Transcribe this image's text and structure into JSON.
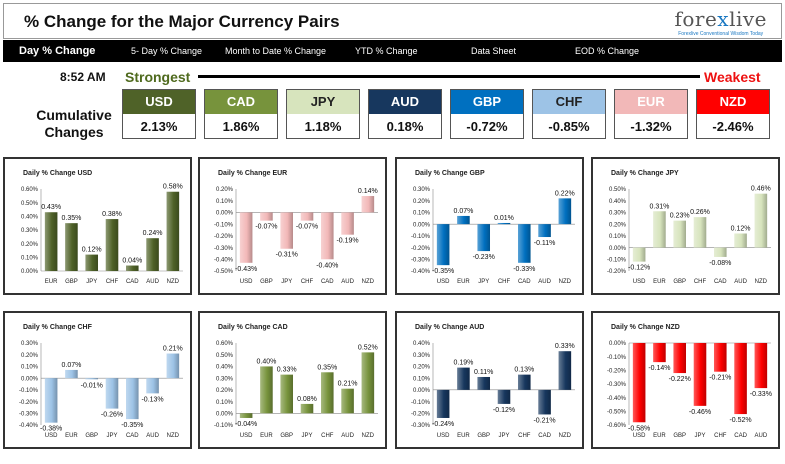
{
  "header": {
    "title": "% Change for the Major Currency Pairs"
  },
  "logo": {
    "brand_a": "fore",
    "brand_x": "x",
    "brand_b": "live",
    "tagline": "Forexlive Conventional Wisdom Today"
  },
  "tabs": [
    "Day % Change",
    "5- Day % Change",
    "Month to Date % Change",
    "YTD % Change",
    "Data Sheet",
    "EOD % Change"
  ],
  "summary": {
    "time": "8:52 AM",
    "strongest_label": "Strongest",
    "weakest_label": "Weakest",
    "cumulative_label_1": "Cumulative",
    "cumulative_label_2": "Changes",
    "currencies": [
      {
        "name": "USD",
        "value": "2.13%",
        "bg": "#4f6228",
        "fg": "#ffffff"
      },
      {
        "name": "CAD",
        "value": "1.86%",
        "bg": "#77933c",
        "fg": "#ffffff"
      },
      {
        "name": "JPY",
        "value": "1.18%",
        "bg": "#d7e4bd",
        "fg": "#222222"
      },
      {
        "name": "AUD",
        "value": "0.18%",
        "bg": "#17375e",
        "fg": "#ffffff"
      },
      {
        "name": "GBP",
        "value": "-0.72%",
        "bg": "#0070c0",
        "fg": "#ffffff"
      },
      {
        "name": "CHF",
        "value": "-0.85%",
        "bg": "#9dc3e6",
        "fg": "#222222"
      },
      {
        "name": "EUR",
        "value": "-1.32%",
        "bg": "#f2b8b8",
        "fg": "#ffffff"
      },
      {
        "name": "NZD",
        "value": "-2.46%",
        "bg": "#ff0000",
        "fg": "#ffffff"
      }
    ]
  },
  "chart_data": [
    {
      "type": "bar",
      "title": "Daily % Change USD",
      "categories": [
        "EUR",
        "GBP",
        "JPY",
        "CHF",
        "CAD",
        "AUD",
        "NZD"
      ],
      "values": [
        0.43,
        0.35,
        0.12,
        0.38,
        0.04,
        0.24,
        0.58
      ],
      "labels": [
        "0.43%",
        "0.35%",
        "0.12%",
        "0.38%",
        "0.04%",
        "0.24%",
        "0.58%"
      ],
      "ylim": [
        0,
        0.6
      ],
      "yticks": [
        "0.00%",
        "0.10%",
        "0.20%",
        "0.30%",
        "0.40%",
        "0.50%",
        "0.60%"
      ],
      "color": "#4f6228"
    },
    {
      "type": "bar",
      "title": "Daily % Change EUR",
      "categories": [
        "USD",
        "GBP",
        "JPY",
        "CHF",
        "CAD",
        "AUD",
        "NZD"
      ],
      "values": [
        -0.43,
        -0.07,
        -0.31,
        -0.07,
        -0.4,
        -0.19,
        0.14
      ],
      "labels": [
        "-0.43%",
        "-0.07%",
        "-0.31%",
        "-0.07%",
        "-0.40%",
        "-0.19%",
        "0.14%"
      ],
      "ylim": [
        -0.5,
        0.2
      ],
      "yticks": [
        "-0.50%",
        "-0.40%",
        "-0.30%",
        "-0.20%",
        "-0.10%",
        "0.00%",
        "0.10%",
        "0.20%"
      ],
      "color": "#f2b8b8"
    },
    {
      "type": "bar",
      "title": "Daily % Change GBP",
      "categories": [
        "USD",
        "EUR",
        "JPY",
        "CHF",
        "CAD",
        "AUD",
        "NZD"
      ],
      "values": [
        -0.35,
        0.07,
        -0.23,
        0.01,
        -0.33,
        -0.11,
        0.22
      ],
      "labels": [
        "-0.35%",
        "0.07%",
        "-0.23%",
        "0.01%",
        "-0.33%",
        "-0.11%",
        "0.22%"
      ],
      "ylim": [
        -0.4,
        0.3
      ],
      "yticks": [
        "-0.40%",
        "-0.30%",
        "-0.20%",
        "-0.10%",
        "0.00%",
        "0.10%",
        "0.20%",
        "0.30%"
      ],
      "color": "#0070c0"
    },
    {
      "type": "bar",
      "title": "Daily % Change JPY",
      "categories": [
        "USD",
        "EUR",
        "GBP",
        "CHF",
        "CAD",
        "AUD",
        "NZD"
      ],
      "values": [
        -0.12,
        0.31,
        0.23,
        0.26,
        -0.08,
        0.12,
        0.46
      ],
      "labels": [
        "-0.12%",
        "0.31%",
        "0.23%",
        "0.26%",
        "-0.08%",
        "0.12%",
        "0.46%"
      ],
      "ylim": [
        -0.2,
        0.5
      ],
      "yticks": [
        "-0.20%",
        "-0.10%",
        "0.00%",
        "0.10%",
        "0.20%",
        "0.30%",
        "0.40%",
        "0.50%"
      ],
      "color": "#d7e4bd"
    },
    {
      "type": "bar",
      "title": "Daily % Change CHF",
      "categories": [
        "USD",
        "EUR",
        "GBP",
        "JPY",
        "CAD",
        "AUD",
        "NZD"
      ],
      "values": [
        -0.38,
        0.07,
        -0.01,
        -0.26,
        -0.35,
        -0.13,
        0.21
      ],
      "labels": [
        "-0.38%",
        "0.07%",
        "-0.01%",
        "-0.26%",
        "-0.35%",
        "-0.13%",
        "0.21%"
      ],
      "ylim": [
        -0.4,
        0.3
      ],
      "yticks": [
        "-0.40%",
        "-0.30%",
        "-0.20%",
        "-0.10%",
        "0.00%",
        "0.10%",
        "0.20%",
        "0.30%"
      ],
      "color": "#9dc3e6"
    },
    {
      "type": "bar",
      "title": "Daily % Change CAD",
      "categories": [
        "USD",
        "EUR",
        "GBP",
        "JPY",
        "CHF",
        "AUD",
        "NZD"
      ],
      "values": [
        -0.04,
        0.4,
        0.33,
        0.08,
        0.35,
        0.21,
        0.52
      ],
      "labels": [
        "-0.04%",
        "0.40%",
        "0.33%",
        "0.08%",
        "0.35%",
        "0.21%",
        "0.52%"
      ],
      "ylim": [
        -0.1,
        0.6
      ],
      "yticks": [
        "-0.10%",
        "0.00%",
        "0.10%",
        "0.20%",
        "0.30%",
        "0.40%",
        "0.50%",
        "0.60%"
      ],
      "color": "#77933c"
    },
    {
      "type": "bar",
      "title": "Daily % Change AUD",
      "categories": [
        "USD",
        "EUR",
        "GBP",
        "JPY",
        "CHF",
        "CAD",
        "NZD"
      ],
      "values": [
        -0.24,
        0.19,
        0.11,
        -0.12,
        0.13,
        -0.21,
        0.33
      ],
      "labels": [
        "-0.24%",
        "0.19%",
        "0.11%",
        "-0.12%",
        "0.13%",
        "-0.21%",
        "0.33%"
      ],
      "ylim": [
        -0.3,
        0.4
      ],
      "yticks": [
        "-0.30%",
        "-0.20%",
        "-0.10%",
        "0.00%",
        "0.10%",
        "0.20%",
        "0.30%",
        "0.40%"
      ],
      "color": "#17375e"
    },
    {
      "type": "bar",
      "title": "Daily % Change NZD",
      "categories": [
        "USD",
        "EUR",
        "GBP",
        "JPY",
        "CHF",
        "CAD",
        "AUD"
      ],
      "values": [
        -0.58,
        -0.14,
        -0.22,
        -0.46,
        -0.21,
        -0.52,
        -0.33
      ],
      "labels": [
        "-0.58%",
        "-0.14%",
        "-0.22%",
        "-0.46%",
        "-0.21%",
        "-0.52%",
        "-0.33%"
      ],
      "ylim": [
        -0.6,
        0
      ],
      "yticks": [
        "-0.60%",
        "-0.50%",
        "-0.40%",
        "-0.30%",
        "-0.20%",
        "-0.10%",
        "0.00%"
      ],
      "color": "#ff0000"
    }
  ]
}
